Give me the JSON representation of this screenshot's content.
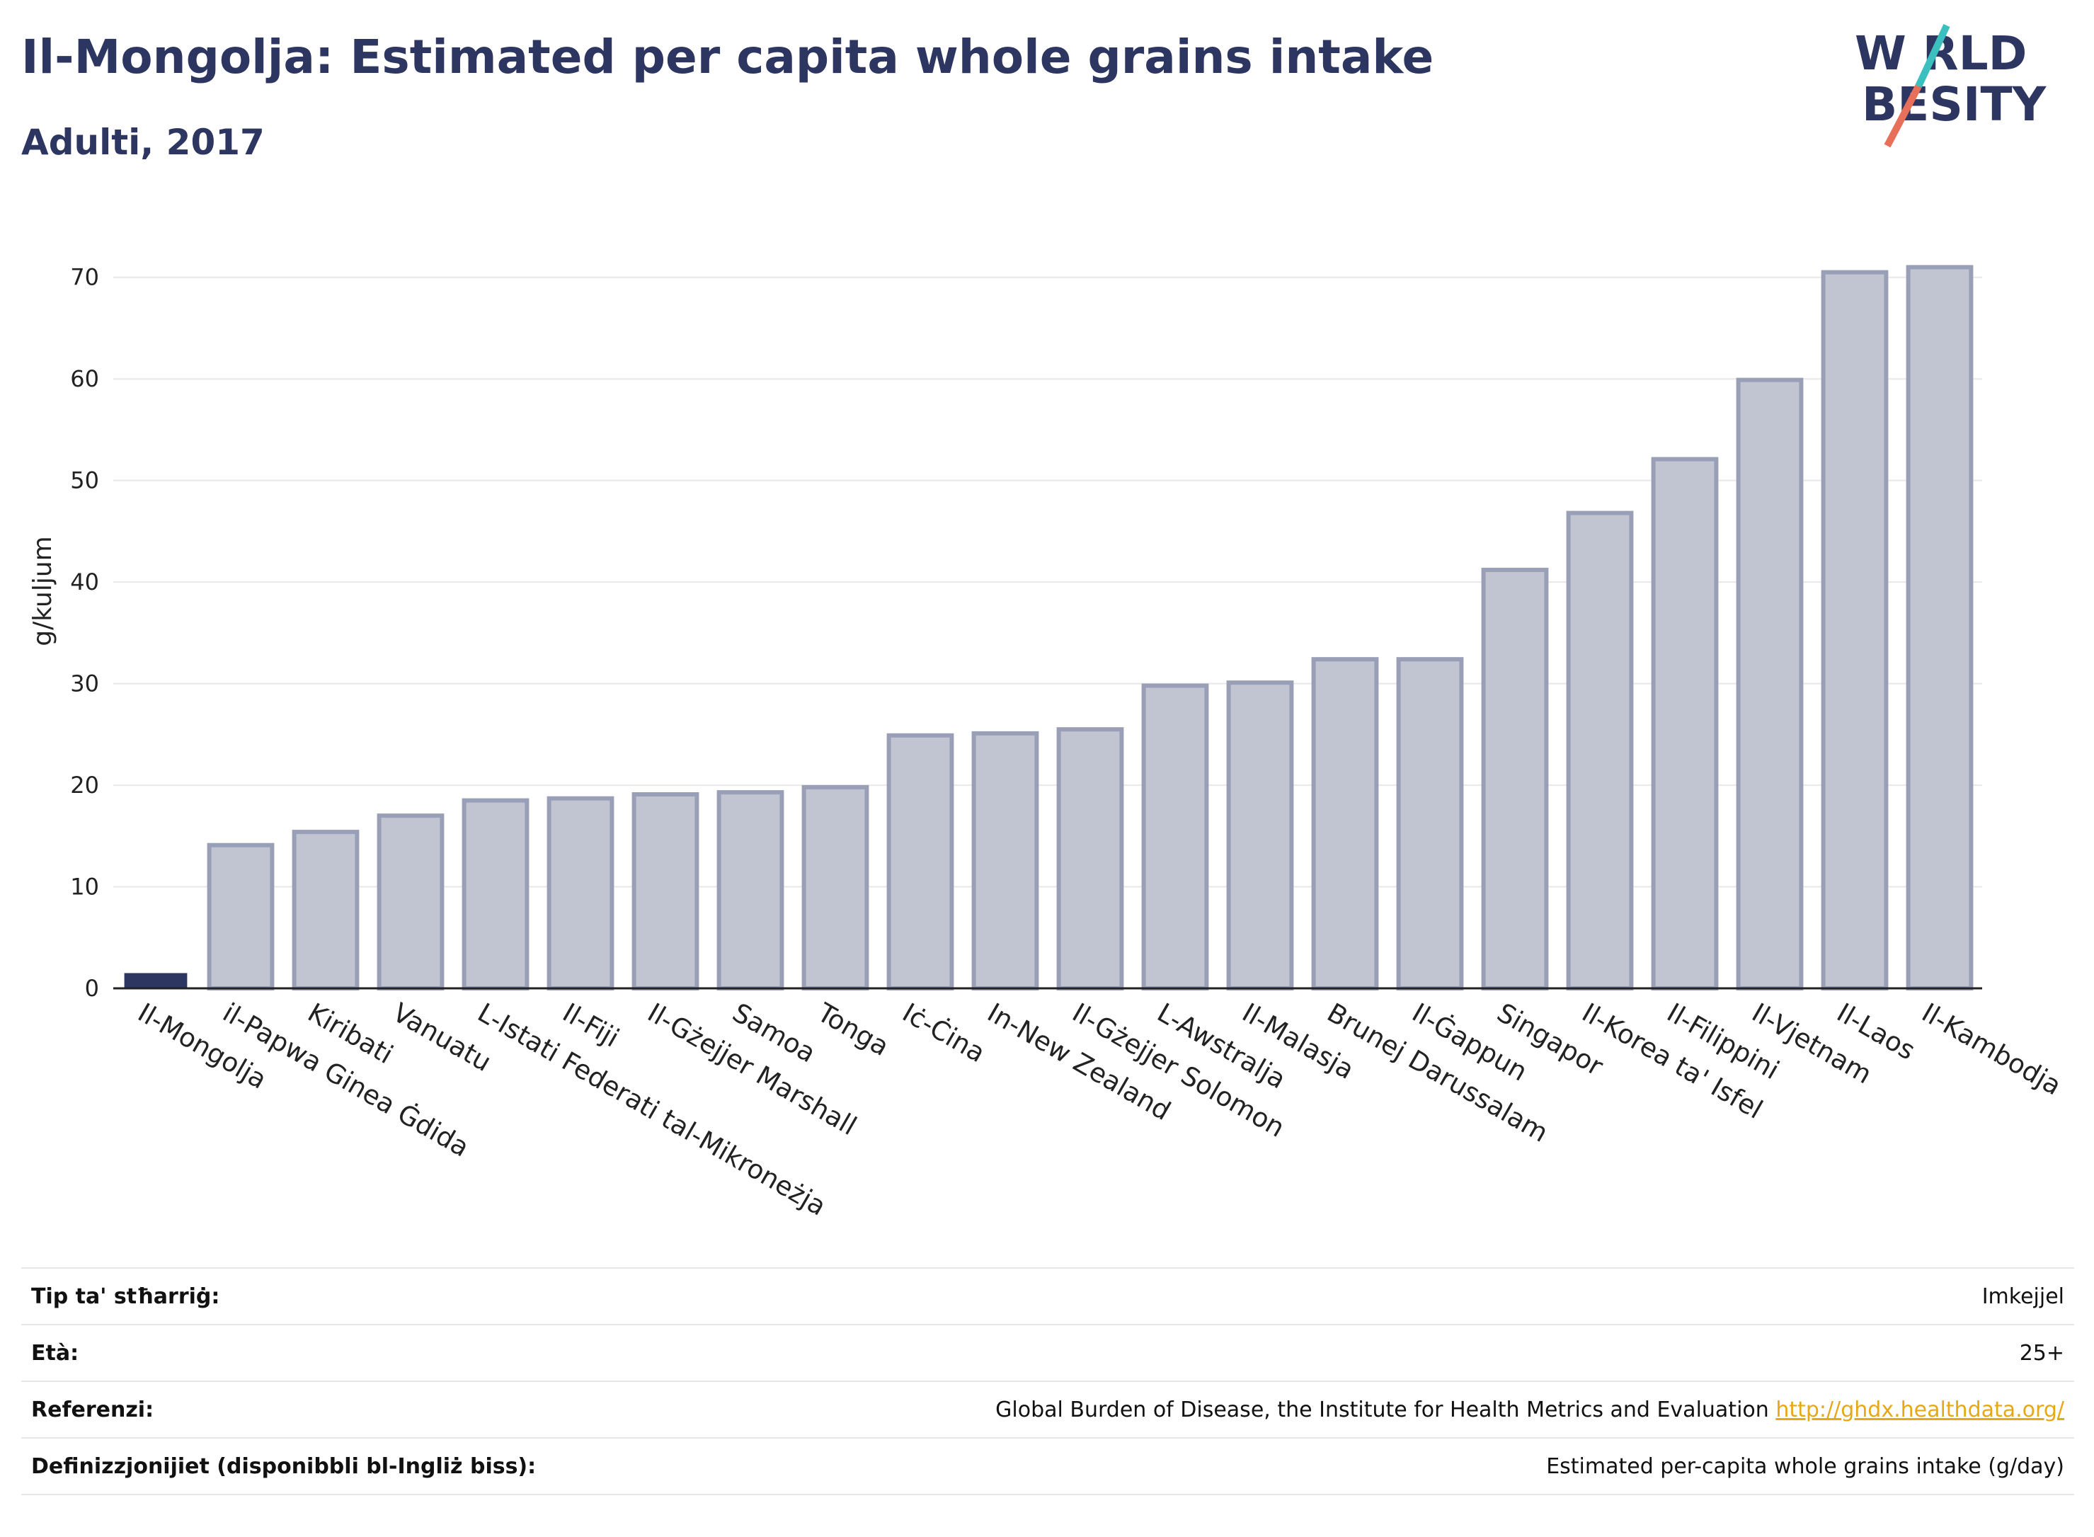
{
  "header": {
    "title": "Il-Mongolja: Estimated per capita whole grains intake",
    "subtitle": "Adulti, 2017"
  },
  "logo": {
    "line1": "W RLD",
    "line2": "BESITY",
    "text": "WORLD OBESITY",
    "colors": {
      "text": "#2d3561",
      "slash_teal": "#3bbfbf",
      "slash_red": "#e8705a"
    }
  },
  "chart_data": {
    "type": "bar",
    "ylabel": "g/kuljum",
    "xlabel": "",
    "ylim": [
      0,
      75
    ],
    "yticks": [
      0,
      10,
      20,
      30,
      40,
      50,
      60,
      70
    ],
    "grid": true,
    "legend": "none",
    "highlight_index": 0,
    "colors": {
      "highlight": "#2d3561",
      "bar_fill": "#c1c4d1",
      "bar_stroke": "#9a9fb8",
      "grid": "#e8e8e8"
    },
    "categories": [
      "Il-Mongolja",
      "il-Papwa Ginea Ġdida",
      "Kiribati",
      "Vanuatu",
      "L-Istati Federati tal-Mikroneżja",
      "Il-Fiji",
      "Il-Gżejjer Marshall",
      "Samoa",
      "Tonga",
      "Iċ-Ċina",
      "In-New Zealand",
      "Il-Gżejjer Solomon",
      "L-Awstralja",
      "Il-Malasja",
      "Brunej Darussalam",
      "Il-Ġappun",
      "Singapor",
      "Il-Korea ta' Isfel",
      "Il-Filippini",
      "Il-Vjetnam",
      "Il-Laos",
      "Il-Kambodja"
    ],
    "values": [
      1.5,
      14.1,
      15.4,
      17.0,
      18.5,
      18.7,
      19.1,
      19.3,
      19.8,
      24.9,
      25.1,
      25.5,
      29.8,
      30.1,
      32.4,
      32.4,
      41.2,
      46.8,
      52.1,
      59.9,
      70.5,
      71.0
    ]
  },
  "info_table": [
    {
      "label": "Tip ta' stħarriġ:",
      "value": "Imkejjel"
    },
    {
      "label": "Età:",
      "value": "25+"
    },
    {
      "label": "Referenzi:",
      "value": "Global Burden of Disease, the Institute for Health Metrics and Evaluation ",
      "link": "http://ghdx.healthdata.org/"
    },
    {
      "label": "Definizzjonijiet (disponibbli bl-Ingliż biss):",
      "value": "Estimated per-capita whole grains intake (g/day)"
    }
  ]
}
